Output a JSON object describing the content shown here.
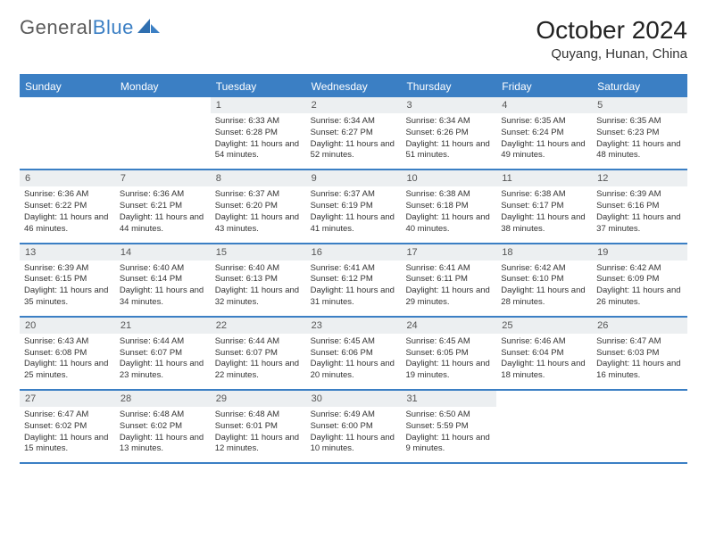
{
  "logo": {
    "text1": "General",
    "text2": "Blue"
  },
  "title": "October 2024",
  "location": "Quyang, Hunan, China",
  "colors": {
    "accent": "#3b7fc4",
    "daynum_bg": "#eceff1",
    "text": "#333333",
    "logo_gray": "#5a5a5a"
  },
  "weekdays": [
    "Sunday",
    "Monday",
    "Tuesday",
    "Wednesday",
    "Thursday",
    "Friday",
    "Saturday"
  ],
  "weeks": [
    [
      {
        "n": "",
        "sunrise": "",
        "sunset": "",
        "daylight": "",
        "empty": true
      },
      {
        "n": "",
        "sunrise": "",
        "sunset": "",
        "daylight": "",
        "empty": true
      },
      {
        "n": "1",
        "sunrise": "Sunrise: 6:33 AM",
        "sunset": "Sunset: 6:28 PM",
        "daylight": "Daylight: 11 hours and 54 minutes."
      },
      {
        "n": "2",
        "sunrise": "Sunrise: 6:34 AM",
        "sunset": "Sunset: 6:27 PM",
        "daylight": "Daylight: 11 hours and 52 minutes."
      },
      {
        "n": "3",
        "sunrise": "Sunrise: 6:34 AM",
        "sunset": "Sunset: 6:26 PM",
        "daylight": "Daylight: 11 hours and 51 minutes."
      },
      {
        "n": "4",
        "sunrise": "Sunrise: 6:35 AM",
        "sunset": "Sunset: 6:24 PM",
        "daylight": "Daylight: 11 hours and 49 minutes."
      },
      {
        "n": "5",
        "sunrise": "Sunrise: 6:35 AM",
        "sunset": "Sunset: 6:23 PM",
        "daylight": "Daylight: 11 hours and 48 minutes."
      }
    ],
    [
      {
        "n": "6",
        "sunrise": "Sunrise: 6:36 AM",
        "sunset": "Sunset: 6:22 PM",
        "daylight": "Daylight: 11 hours and 46 minutes."
      },
      {
        "n": "7",
        "sunrise": "Sunrise: 6:36 AM",
        "sunset": "Sunset: 6:21 PM",
        "daylight": "Daylight: 11 hours and 44 minutes."
      },
      {
        "n": "8",
        "sunrise": "Sunrise: 6:37 AM",
        "sunset": "Sunset: 6:20 PM",
        "daylight": "Daylight: 11 hours and 43 minutes."
      },
      {
        "n": "9",
        "sunrise": "Sunrise: 6:37 AM",
        "sunset": "Sunset: 6:19 PM",
        "daylight": "Daylight: 11 hours and 41 minutes."
      },
      {
        "n": "10",
        "sunrise": "Sunrise: 6:38 AM",
        "sunset": "Sunset: 6:18 PM",
        "daylight": "Daylight: 11 hours and 40 minutes."
      },
      {
        "n": "11",
        "sunrise": "Sunrise: 6:38 AM",
        "sunset": "Sunset: 6:17 PM",
        "daylight": "Daylight: 11 hours and 38 minutes."
      },
      {
        "n": "12",
        "sunrise": "Sunrise: 6:39 AM",
        "sunset": "Sunset: 6:16 PM",
        "daylight": "Daylight: 11 hours and 37 minutes."
      }
    ],
    [
      {
        "n": "13",
        "sunrise": "Sunrise: 6:39 AM",
        "sunset": "Sunset: 6:15 PM",
        "daylight": "Daylight: 11 hours and 35 minutes."
      },
      {
        "n": "14",
        "sunrise": "Sunrise: 6:40 AM",
        "sunset": "Sunset: 6:14 PM",
        "daylight": "Daylight: 11 hours and 34 minutes."
      },
      {
        "n": "15",
        "sunrise": "Sunrise: 6:40 AM",
        "sunset": "Sunset: 6:13 PM",
        "daylight": "Daylight: 11 hours and 32 minutes."
      },
      {
        "n": "16",
        "sunrise": "Sunrise: 6:41 AM",
        "sunset": "Sunset: 6:12 PM",
        "daylight": "Daylight: 11 hours and 31 minutes."
      },
      {
        "n": "17",
        "sunrise": "Sunrise: 6:41 AM",
        "sunset": "Sunset: 6:11 PM",
        "daylight": "Daylight: 11 hours and 29 minutes."
      },
      {
        "n": "18",
        "sunrise": "Sunrise: 6:42 AM",
        "sunset": "Sunset: 6:10 PM",
        "daylight": "Daylight: 11 hours and 28 minutes."
      },
      {
        "n": "19",
        "sunrise": "Sunrise: 6:42 AM",
        "sunset": "Sunset: 6:09 PM",
        "daylight": "Daylight: 11 hours and 26 minutes."
      }
    ],
    [
      {
        "n": "20",
        "sunrise": "Sunrise: 6:43 AM",
        "sunset": "Sunset: 6:08 PM",
        "daylight": "Daylight: 11 hours and 25 minutes."
      },
      {
        "n": "21",
        "sunrise": "Sunrise: 6:44 AM",
        "sunset": "Sunset: 6:07 PM",
        "daylight": "Daylight: 11 hours and 23 minutes."
      },
      {
        "n": "22",
        "sunrise": "Sunrise: 6:44 AM",
        "sunset": "Sunset: 6:07 PM",
        "daylight": "Daylight: 11 hours and 22 minutes."
      },
      {
        "n": "23",
        "sunrise": "Sunrise: 6:45 AM",
        "sunset": "Sunset: 6:06 PM",
        "daylight": "Daylight: 11 hours and 20 minutes."
      },
      {
        "n": "24",
        "sunrise": "Sunrise: 6:45 AM",
        "sunset": "Sunset: 6:05 PM",
        "daylight": "Daylight: 11 hours and 19 minutes."
      },
      {
        "n": "25",
        "sunrise": "Sunrise: 6:46 AM",
        "sunset": "Sunset: 6:04 PM",
        "daylight": "Daylight: 11 hours and 18 minutes."
      },
      {
        "n": "26",
        "sunrise": "Sunrise: 6:47 AM",
        "sunset": "Sunset: 6:03 PM",
        "daylight": "Daylight: 11 hours and 16 minutes."
      }
    ],
    [
      {
        "n": "27",
        "sunrise": "Sunrise: 6:47 AM",
        "sunset": "Sunset: 6:02 PM",
        "daylight": "Daylight: 11 hours and 15 minutes."
      },
      {
        "n": "28",
        "sunrise": "Sunrise: 6:48 AM",
        "sunset": "Sunset: 6:02 PM",
        "daylight": "Daylight: 11 hours and 13 minutes."
      },
      {
        "n": "29",
        "sunrise": "Sunrise: 6:48 AM",
        "sunset": "Sunset: 6:01 PM",
        "daylight": "Daylight: 11 hours and 12 minutes."
      },
      {
        "n": "30",
        "sunrise": "Sunrise: 6:49 AM",
        "sunset": "Sunset: 6:00 PM",
        "daylight": "Daylight: 11 hours and 10 minutes."
      },
      {
        "n": "31",
        "sunrise": "Sunrise: 6:50 AM",
        "sunset": "Sunset: 5:59 PM",
        "daylight": "Daylight: 11 hours and 9 minutes."
      },
      {
        "n": "",
        "sunrise": "",
        "sunset": "",
        "daylight": "",
        "empty": true
      },
      {
        "n": "",
        "sunrise": "",
        "sunset": "",
        "daylight": "",
        "empty": true
      }
    ]
  ]
}
